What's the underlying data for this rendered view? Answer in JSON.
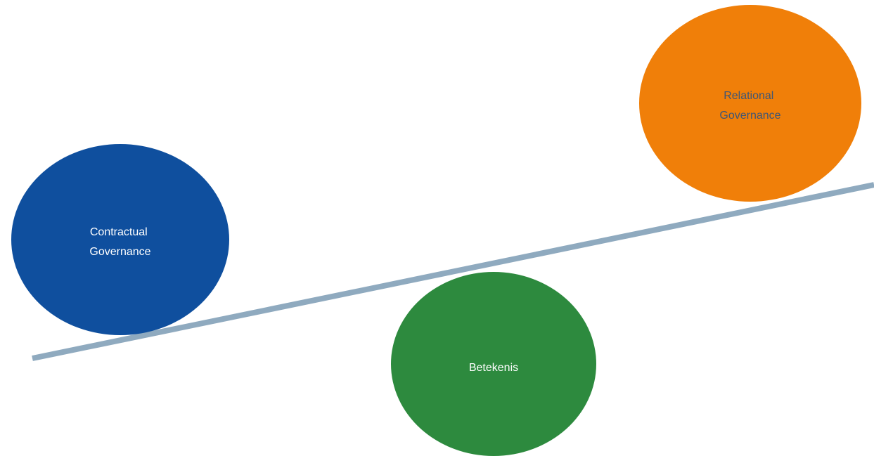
{
  "diagram": {
    "nodes": {
      "contractual": {
        "line1": "Contractual",
        "line2": "Governance",
        "fill": "#0f4f9e",
        "text_color": "#ffffff"
      },
      "relational": {
        "line1": "Relational",
        "line2": "Governance",
        "fill": "#f07f09",
        "text_color": "#3f5675"
      },
      "betekenis": {
        "label": "Betekenis",
        "fill": "#2d8a3e",
        "text_color": "#ffffff"
      }
    },
    "beam": {
      "color": "#8faabf"
    }
  }
}
